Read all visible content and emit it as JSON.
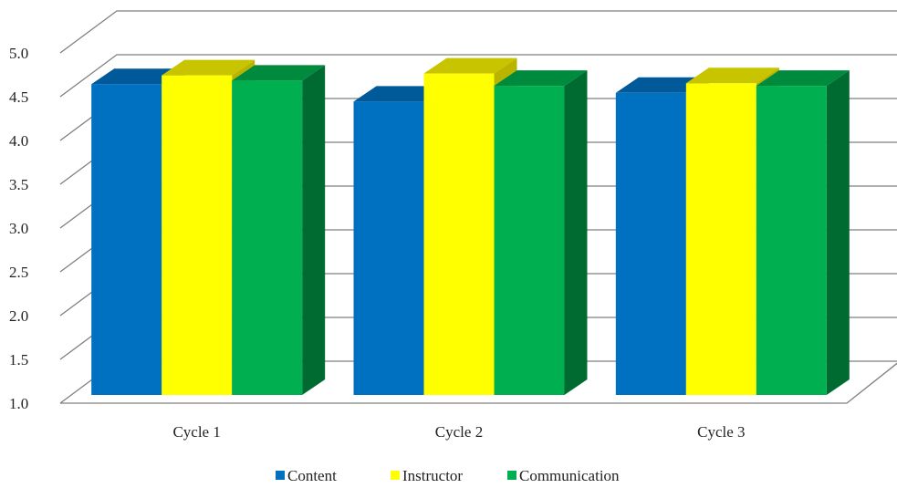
{
  "chart_data": {
    "type": "bar",
    "style": "3d-clustered-column",
    "categories": [
      "Cycle 1",
      "Cycle 2",
      "Cycle 3"
    ],
    "series": [
      {
        "name": "Content",
        "values": [
          4.55,
          4.35,
          4.45
        ],
        "color": "#0070C0",
        "top_color": "#005A9A",
        "side_color": "#004F88"
      },
      {
        "name": "Instructor",
        "values": [
          4.65,
          4.67,
          4.56
        ],
        "color": "#FFFF00",
        "top_color": "#C8C400",
        "side_color": "#B8B400"
      },
      {
        "name": "Communication",
        "values": [
          4.59,
          4.53,
          4.53
        ],
        "color": "#00B050",
        "top_color": "#008A3E",
        "side_color": "#006B30"
      }
    ],
    "y_ticks": [
      "1.0",
      "1.5",
      "2.0",
      "2.5",
      "3.0",
      "3.5",
      "4.0",
      "4.5",
      "5.0"
    ],
    "ylim": [
      1.0,
      5.0
    ],
    "title": "",
    "xlabel": "",
    "ylabel": "",
    "grid": true,
    "legend": "bottom"
  }
}
